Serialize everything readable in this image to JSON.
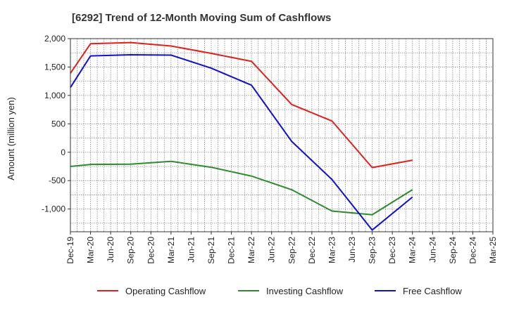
{
  "chart_data": {
    "type": "line",
    "title": "[6292]  Trend of 12-Month Moving Sum of Cashflows",
    "xlabel": "",
    "ylabel": "Amount (million yen)",
    "ylim": [
      -1400,
      2000
    ],
    "yticks": [
      2000,
      1500,
      1000,
      500,
      0,
      -500,
      -1000
    ],
    "ytick_labels": [
      "2,000",
      "1,500",
      "1,000",
      "500",
      "0",
      "-500",
      "-1,000"
    ],
    "categories": [
      "Dec-19",
      "Mar-20",
      "Jun-20",
      "Sep-20",
      "Dec-20",
      "Mar-21",
      "Jun-21",
      "Sep-21",
      "Dec-21",
      "Mar-22",
      "Jun-22",
      "Sep-22",
      "Dec-22",
      "Mar-23",
      "Jun-23",
      "Sep-23",
      "Dec-23",
      "Mar-24",
      "Jun-24",
      "Sep-24",
      "Dec-24",
      "Mar-25"
    ],
    "grid": true,
    "legend_position": "bottom",
    "series": [
      {
        "name": "Operating Cashflow",
        "color": "#e0201b",
        "values": [
          1390,
          1910,
          null,
          1930,
          null,
          1870,
          null,
          1740,
          null,
          1600,
          null,
          840,
          null,
          550,
          null,
          -270,
          null,
          -140,
          null,
          null,
          null,
          null
        ]
      },
      {
        "name": "Investing Cashflow",
        "color": "#2e8b2e",
        "values": [
          -250,
          -215,
          null,
          -210,
          null,
          -160,
          null,
          -265,
          null,
          -420,
          null,
          -660,
          null,
          -1035,
          null,
          -1100,
          null,
          -660,
          null,
          null,
          null,
          null
        ]
      },
      {
        "name": "Free Cashflow",
        "color": "#1010d0",
        "values": [
          1140,
          1695,
          null,
          1715,
          null,
          1710,
          null,
          1480,
          null,
          1180,
          null,
          190,
          null,
          -480,
          null,
          -1370,
          null,
          -790,
          null,
          null,
          null,
          null
        ]
      }
    ]
  }
}
